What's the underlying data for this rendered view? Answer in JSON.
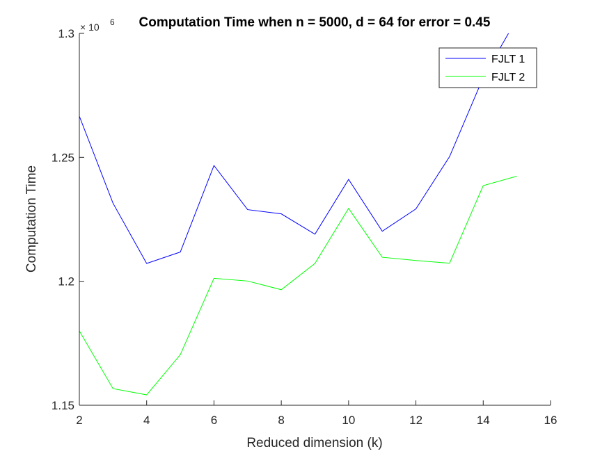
{
  "chart_data": {
    "type": "line",
    "title": "Computation Time when n = 5000, d = 64 for error = 0.45",
    "xlabel": "Reduced dimension (k)",
    "ylabel": "Computation Time",
    "y_exponent_base": "× 10",
    "y_exponent_power": "6",
    "xlim": [
      2,
      16
    ],
    "ylim": [
      1.15,
      1.3
    ],
    "xticks": [
      "2",
      "4",
      "6",
      "8",
      "10",
      "12",
      "14",
      "16"
    ],
    "yticks": [
      "1.15",
      "1.2",
      "1.25",
      "1.3"
    ],
    "legend_position": "top-right",
    "grid": false,
    "series": [
      {
        "name": "FJLT 1",
        "color": "#0000ff",
        "x": [
          2,
          3,
          4,
          5,
          6,
          7,
          8,
          9,
          10,
          11,
          12,
          13,
          14,
          15
        ],
        "y": [
          1.2666,
          1.2315,
          1.2072,
          1.2118,
          1.2467,
          1.2289,
          1.2272,
          1.219,
          1.2411,
          1.2202,
          1.2292,
          1.2503,
          1.2822,
          1.3059
        ]
      },
      {
        "name": "FJLT 2",
        "color": "#00ff00",
        "x": [
          2,
          3,
          4,
          5,
          6,
          7,
          8,
          9,
          10,
          11,
          12,
          13,
          14,
          15
        ],
        "y": [
          1.18,
          1.1567,
          1.1542,
          1.1704,
          1.2012,
          1.2001,
          1.1966,
          1.2072,
          1.2294,
          1.2097,
          1.2084,
          1.2073,
          1.2386,
          1.2424
        ]
      }
    ]
  }
}
